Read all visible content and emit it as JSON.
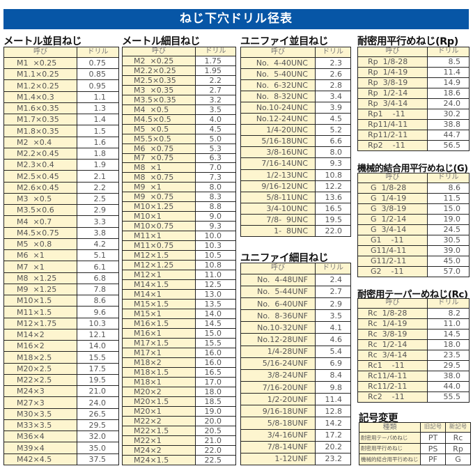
{
  "title": "ねじ下穴ドリル径表",
  "colors": {
    "title_bar": "#0756a6",
    "name_cell": "#fdf5cf",
    "border": "#222222"
  },
  "header": {
    "name": "呼び",
    "drill": "ドリル"
  },
  "metric_coarse": {
    "title": "メートル並目ねじ",
    "rows": [
      [
        "M1  ×0.25",
        "0.75"
      ],
      [
        "M1.1×0.25",
        "0.85"
      ],
      [
        "M1.2×0.25",
        "0.95"
      ],
      [
        "M1.4×0.3",
        "1.1"
      ],
      [
        "M1.6×0.35",
        "1.3"
      ],
      [
        "M1.7×0.35",
        "1.4"
      ],
      [
        "M1.8×0.35",
        "1.5"
      ],
      [
        "M2  ×0.4",
        "1.6"
      ],
      [
        "M2.2×0.45",
        "1.8"
      ],
      [
        "M2.3×0.4",
        "1.9"
      ],
      [
        "M2.5×0.45",
        "2.1"
      ],
      [
        "M2.6×0.45",
        "2.2"
      ],
      [
        "M3  ×0.5",
        "2.5"
      ],
      [
        "M3.5×0.6",
        "2.9"
      ],
      [
        "M4  ×0.7",
        "3.3"
      ],
      [
        "M4.5×0.75",
        "3.8"
      ],
      [
        "M5  ×0.8",
        "4.2"
      ],
      [
        "M6  ×1",
        "5.1"
      ],
      [
        "M7  ×1",
        "6.1"
      ],
      [
        "M8  ×1.25",
        "6.8"
      ],
      [
        "M9  ×1.25",
        "7.8"
      ],
      [
        "M10×1.5",
        "8.6"
      ],
      [
        "M11×1.5",
        "9.6"
      ],
      [
        "M12×1.75",
        "10.3"
      ],
      [
        "M14×2",
        "12.1"
      ],
      [
        "M16×2",
        "14.0"
      ],
      [
        "M18×2.5",
        "15.5"
      ],
      [
        "M20×2.5",
        "17.5"
      ],
      [
        "M22×2.5",
        "19.5"
      ],
      [
        "M24×3",
        "21.0"
      ],
      [
        "M27×3",
        "24.0"
      ],
      [
        "M30×3.5",
        "26.5"
      ],
      [
        "M33×3.5",
        "29.5"
      ],
      [
        "M36×4",
        "32.0"
      ],
      [
        "M39×4",
        "35.0"
      ],
      [
        "M42×4.5",
        "37.5"
      ]
    ]
  },
  "metric_fine": {
    "title": "メートル細目ねじ",
    "rows": [
      [
        "M2  ×0.25",
        "1.75"
      ],
      [
        "M2.2×0.25",
        "1.95"
      ],
      [
        "M2.5×0.35",
        "2.2"
      ],
      [
        "M3  ×0.35",
        "2.7"
      ],
      [
        "M3.5×0.35",
        "3.2"
      ],
      [
        "M4  ×0.5",
        "3.5"
      ],
      [
        "M4.5×0.5",
        "4.0"
      ],
      [
        "M5  ×0.5",
        "4.5"
      ],
      [
        "M5.5×0.5",
        "5.0"
      ],
      [
        "M6  ×0.75",
        "5.3"
      ],
      [
        "M7  ×0.75",
        "6.3"
      ],
      [
        "M8  ×1",
        "7.0"
      ],
      [
        "M8  ×0.75",
        "7.3"
      ],
      [
        "M9  ×1",
        "8.0"
      ],
      [
        "M9  ×0.75",
        "8.3"
      ],
      [
        "M10×1.25",
        "8.8"
      ],
      [
        "M10×1",
        "9.0"
      ],
      [
        "M10×0.75",
        "9.3"
      ],
      [
        "M11×1",
        "10.0"
      ],
      [
        "M11×0.75",
        "10.3"
      ],
      [
        "M12×1.5",
        "10.5"
      ],
      [
        "M12×1.25",
        "10.8"
      ],
      [
        "M12×1",
        "11.0"
      ],
      [
        "M14×1.5",
        "12.5"
      ],
      [
        "M14×1",
        "13.0"
      ],
      [
        "M15×1.5",
        "13.5"
      ],
      [
        "M15×1",
        "14.0"
      ],
      [
        "M16×1.5",
        "14.5"
      ],
      [
        "M16×1",
        "15.0"
      ],
      [
        "M17×1.5",
        "15.5"
      ],
      [
        "M17×1",
        "16.0"
      ],
      [
        "M18×2",
        "16.0"
      ],
      [
        "M18×1.5",
        "16.5"
      ],
      [
        "M18×1",
        "17.0"
      ],
      [
        "M20×2",
        "18.0"
      ],
      [
        "M20×1.5",
        "18.5"
      ],
      [
        "M20×1",
        "19.0"
      ],
      [
        "M22×2",
        "20.0"
      ],
      [
        "M22×1.5",
        "20.5"
      ],
      [
        "M22×1",
        "21.0"
      ],
      [
        "M24×2",
        "22.0"
      ],
      [
        "M24×1.5",
        "22.5"
      ]
    ]
  },
  "unc": {
    "title": "ユニファイ並目ねじ",
    "rows": [
      [
        "No.  4-40UNC",
        "2.3"
      ],
      [
        "No.  5-40UNC",
        "2.6"
      ],
      [
        "No.  6-32UNC",
        "2.8"
      ],
      [
        "No.  8-32UNC",
        "3.4"
      ],
      [
        "No.10-24UNC",
        "3.9"
      ],
      [
        "No.12-24UNC",
        "4.5"
      ],
      [
        "1/4-20UNC",
        "5.2"
      ],
      [
        "5/16-18UNC",
        "6.6"
      ],
      [
        "3/8-16UNC",
        "8.0"
      ],
      [
        "7/16-14UNC",
        "9.3"
      ],
      [
        "1/2-13UNC",
        "10.8"
      ],
      [
        "9/16-12UNC",
        "12.2"
      ],
      [
        "5/8-11UNC",
        "13.6"
      ],
      [
        "3/4-10UNC",
        "16.5"
      ],
      [
        "7/8-  9UNC",
        "19.5"
      ],
      [
        "1-  8UNC",
        "22.0"
      ]
    ]
  },
  "unf": {
    "title": "ユニファイ細目ねじ",
    "rows": [
      [
        "No.  4-48UNF",
        "2.4"
      ],
      [
        "No.  5-44UNF",
        "2.7"
      ],
      [
        "No.  6-40UNF",
        "2.9"
      ],
      [
        "No.  8-36UNF",
        "3.5"
      ],
      [
        "No.10-32UNF",
        "4.1"
      ],
      [
        "No.12-28UNF",
        "4.6"
      ],
      [
        "1/4-28UNF",
        "5.4"
      ],
      [
        "5/16-24UNF",
        "6.9"
      ],
      [
        "3/8-24UNF",
        "8.4"
      ],
      [
        "7/16-20UNF",
        "9.8"
      ],
      [
        "1/2-20UNF",
        "11.4"
      ],
      [
        "9/16-18UNF",
        "12.8"
      ],
      [
        "5/8-18UNF",
        "14.2"
      ],
      [
        "3/4-16UNF",
        "17.2"
      ],
      [
        "7/8-14UNF",
        "20.2"
      ],
      [
        "1-12UNF",
        "23.2"
      ]
    ]
  },
  "rp": {
    "title": "耐密用平行めねじ(Rp)",
    "rows": [
      [
        "Rp  1/8-28",
        "8.5"
      ],
      [
        "Rp  1/4-19",
        "11.4"
      ],
      [
        "Rp  3/8-19",
        "14.9"
      ],
      [
        "Rp  1/2-14",
        "18.6"
      ],
      [
        "Rp  3/4-14",
        "24.0"
      ],
      [
        "Rp1    -11",
        "30.2"
      ],
      [
        "Rp11/4-11",
        "38.8"
      ],
      [
        "Rp11/2-11",
        "44.7"
      ],
      [
        "Rp2    -11",
        "56.5"
      ]
    ]
  },
  "g": {
    "title": "機械的結合用平行めねじ(G)",
    "rows": [
      [
        "G  1/8-28",
        "8.6"
      ],
      [
        "G  1/4-19",
        "11.5"
      ],
      [
        "G  3/8-19",
        "15.0"
      ],
      [
        "G  1/2-14",
        "19.0"
      ],
      [
        "G  3/4-14",
        "24.5"
      ],
      [
        "G1    -11",
        "30.5"
      ],
      [
        "G11/4-11",
        "39.0"
      ],
      [
        "G11/2-11",
        "45.0"
      ],
      [
        "G2    -11",
        "57.0"
      ]
    ]
  },
  "rc": {
    "title": "耐密用テーパーめねじ(Rc)",
    "rows": [
      [
        "Rc  1/8-28",
        "8.2"
      ],
      [
        "Rc  1/4-19",
        "11.0"
      ],
      [
        "Rc  3/8-19",
        "14.5"
      ],
      [
        "Rc  1/2-14",
        "18.0"
      ],
      [
        "Rc  3/4-14",
        "23.5"
      ],
      [
        "Rc1    -11",
        "29.5"
      ],
      [
        "Rc11/4-11",
        "38.0"
      ],
      [
        "Rc11/2-11",
        "44.0"
      ],
      [
        "Rc2    -11",
        "55.5"
      ]
    ]
  },
  "symbols": {
    "title": "記号変更",
    "headers": [
      "種類",
      "旧記号",
      "新記号"
    ],
    "rows": [
      [
        "耐密用テーパめねじ",
        "PT",
        "Rc"
      ],
      [
        "耐密用平行めねじ",
        "PS",
        "Rp"
      ],
      [
        "機械的結合用平行めねじ",
        "PF",
        "G"
      ]
    ]
  }
}
